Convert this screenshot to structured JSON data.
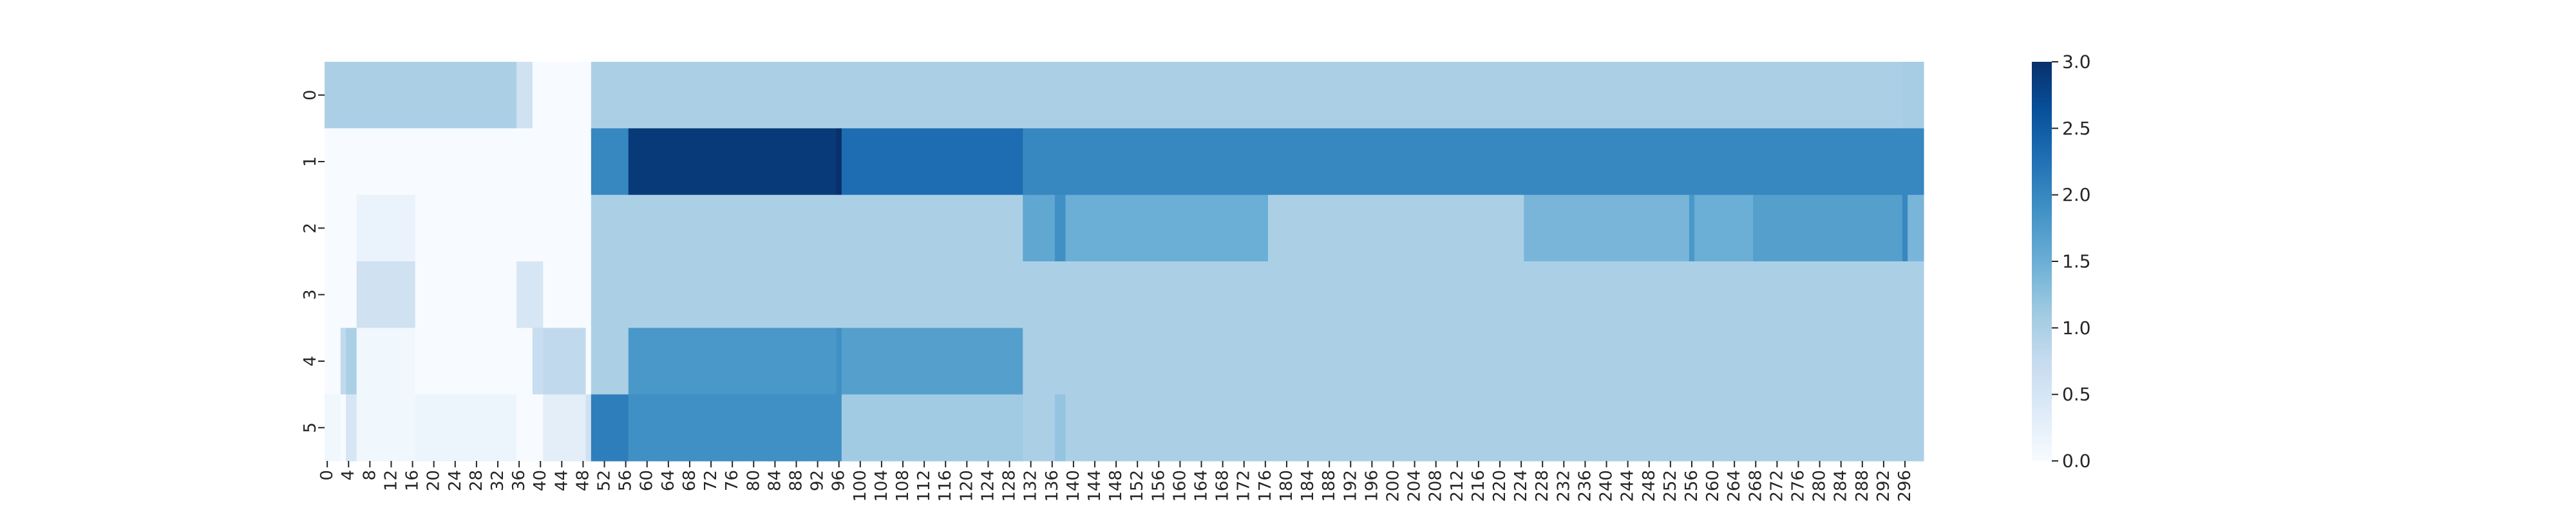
{
  "chart_data": {
    "type": "heatmap",
    "colormap": "Blues",
    "vmin": 0,
    "vmax": 3,
    "rows": [
      "0",
      "1",
      "2",
      "3",
      "4",
      "5"
    ],
    "x_ticks": [
      0,
      4,
      8,
      12,
      16,
      20,
      24,
      28,
      32,
      36,
      40,
      44,
      48,
      52,
      56,
      60,
      64,
      68,
      72,
      76,
      80,
      84,
      88,
      92,
      96,
      100,
      104,
      108,
      112,
      116,
      120,
      124,
      128,
      132,
      136,
      140,
      144,
      148,
      152,
      156,
      160,
      164,
      168,
      172,
      176,
      180,
      184,
      188,
      192,
      196,
      200,
      204,
      208,
      212,
      216,
      220,
      224,
      228,
      232,
      236,
      240,
      244,
      248,
      252,
      256,
      260,
      264,
      268,
      272,
      276,
      280,
      284,
      288,
      292,
      296
    ],
    "x_count": 300,
    "colorbar_ticks": [
      "0.0",
      "0.5",
      "1.0",
      "1.5",
      "2.0",
      "2.5",
      "3.0"
    ],
    "row_segments": [
      [
        [
          0,
          3,
          1.0
        ],
        [
          3,
          36,
          1.0
        ],
        [
          36,
          39,
          0.6
        ],
        [
          39,
          50,
          0.0
        ],
        [
          50,
          296,
          1.0
        ],
        [
          296,
          300,
          1.05
        ]
      ],
      [
        [
          0,
          50,
          0.0
        ],
        [
          50,
          57,
          2.0
        ],
        [
          57,
          96,
          2.9
        ],
        [
          96,
          97,
          3.0
        ],
        [
          97,
          131,
          2.3
        ],
        [
          131,
          300,
          2.0
        ]
      ],
      [
        [
          0,
          6,
          0.0
        ],
        [
          6,
          17,
          0.2
        ],
        [
          17,
          50,
          0.0
        ],
        [
          50,
          131,
          1.0
        ],
        [
          131,
          137,
          1.6
        ],
        [
          137,
          139,
          1.9
        ],
        [
          139,
          177,
          1.5
        ],
        [
          177,
          225,
          1.0
        ],
        [
          225,
          256,
          1.4
        ],
        [
          256,
          257,
          1.8
        ],
        [
          257,
          268,
          1.5
        ],
        [
          268,
          296,
          1.7
        ],
        [
          296,
          297,
          2.0
        ],
        [
          297,
          300,
          1.4
        ]
      ],
      [
        [
          0,
          6,
          0.0
        ],
        [
          6,
          17,
          0.6
        ],
        [
          17,
          36,
          0.0
        ],
        [
          36,
          41,
          0.5
        ],
        [
          41,
          50,
          0.0
        ],
        [
          50,
          300,
          1.0
        ]
      ],
      [
        [
          0,
          3,
          0.0
        ],
        [
          3,
          4,
          0.8
        ],
        [
          4,
          6,
          1.0
        ],
        [
          6,
          17,
          0.1
        ],
        [
          17,
          39,
          0.0
        ],
        [
          39,
          41,
          0.7
        ],
        [
          41,
          49,
          0.8
        ],
        [
          49,
          50,
          0.0
        ],
        [
          50,
          57,
          1.0
        ],
        [
          57,
          96,
          1.8
        ],
        [
          96,
          97,
          1.9
        ],
        [
          97,
          131,
          1.7
        ],
        [
          131,
          300,
          1.0
        ]
      ],
      [
        [
          0,
          3,
          0.1
        ],
        [
          3,
          4,
          0.0
        ],
        [
          4,
          6,
          0.5
        ],
        [
          6,
          17,
          0.1
        ],
        [
          17,
          36,
          0.15
        ],
        [
          36,
          41,
          0.0
        ],
        [
          41,
          49,
          0.3
        ],
        [
          49,
          50,
          0.6
        ],
        [
          50,
          57,
          2.1
        ],
        [
          57,
          96,
          1.9
        ],
        [
          96,
          97,
          1.9
        ],
        [
          97,
          131,
          1.1
        ],
        [
          131,
          137,
          1.0
        ],
        [
          137,
          139,
          1.2
        ],
        [
          139,
          225,
          1.0
        ],
        [
          225,
          300,
          1.0
        ]
      ]
    ]
  }
}
